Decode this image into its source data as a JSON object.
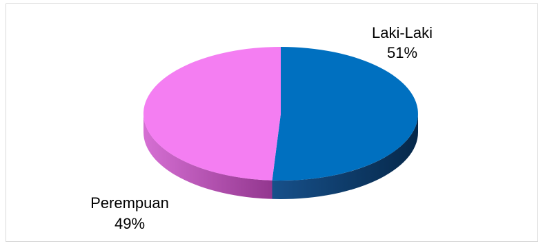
{
  "chart_data": {
    "type": "pie",
    "style": "3d",
    "title": "",
    "slices": [
      {
        "name": "Laki-Laki",
        "value": 51,
        "percent_label": "51%",
        "color": "#0070c0",
        "side_color": "#0a3764"
      },
      {
        "name": "Perempuan",
        "value": 49,
        "percent_label": "49%",
        "color": "#f47ef2",
        "side_color": "#b751b3"
      }
    ],
    "legend": "none"
  }
}
